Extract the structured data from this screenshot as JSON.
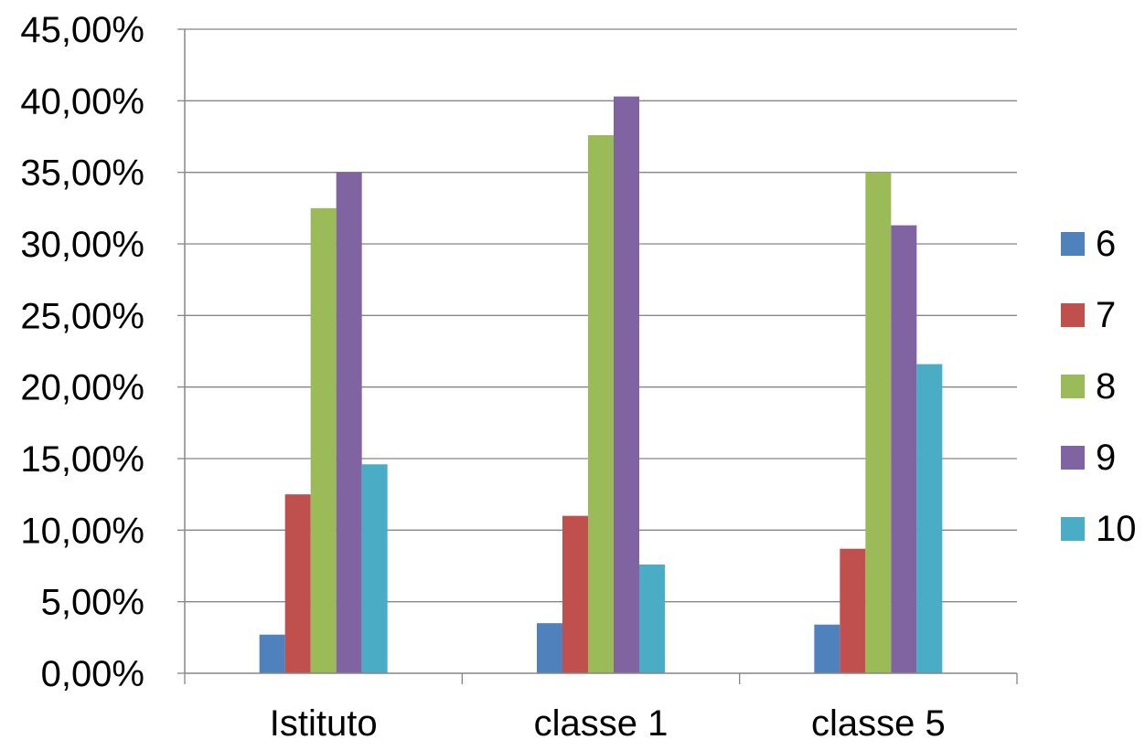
{
  "chart_data": {
    "type": "bar",
    "categories": [
      "Istituto",
      "classe 1",
      "classe 5"
    ],
    "series": [
      {
        "name": "6",
        "color": "#4F81BD",
        "values": [
          2.7,
          3.5,
          3.4
        ]
      },
      {
        "name": "7",
        "color": "#C0504D",
        "values": [
          12.5,
          11.0,
          8.7
        ]
      },
      {
        "name": "8",
        "color": "#9BBB59",
        "values": [
          32.5,
          37.6,
          35.0
        ]
      },
      {
        "name": "9",
        "color": "#8064A2",
        "values": [
          35.0,
          40.3,
          31.3
        ]
      },
      {
        "name": "10",
        "color": "#4BACC6",
        "values": [
          14.6,
          7.6,
          21.6
        ]
      }
    ],
    "yticks": [
      "0,00%",
      "5,00%",
      "10,00%",
      "15,00%",
      "20,00%",
      "25,00%",
      "30,00%",
      "35,00%",
      "40,00%",
      "45,00%"
    ],
    "ylim": [
      0,
      45
    ],
    "ystep": 5,
    "grid": true,
    "legend_position": "right"
  }
}
